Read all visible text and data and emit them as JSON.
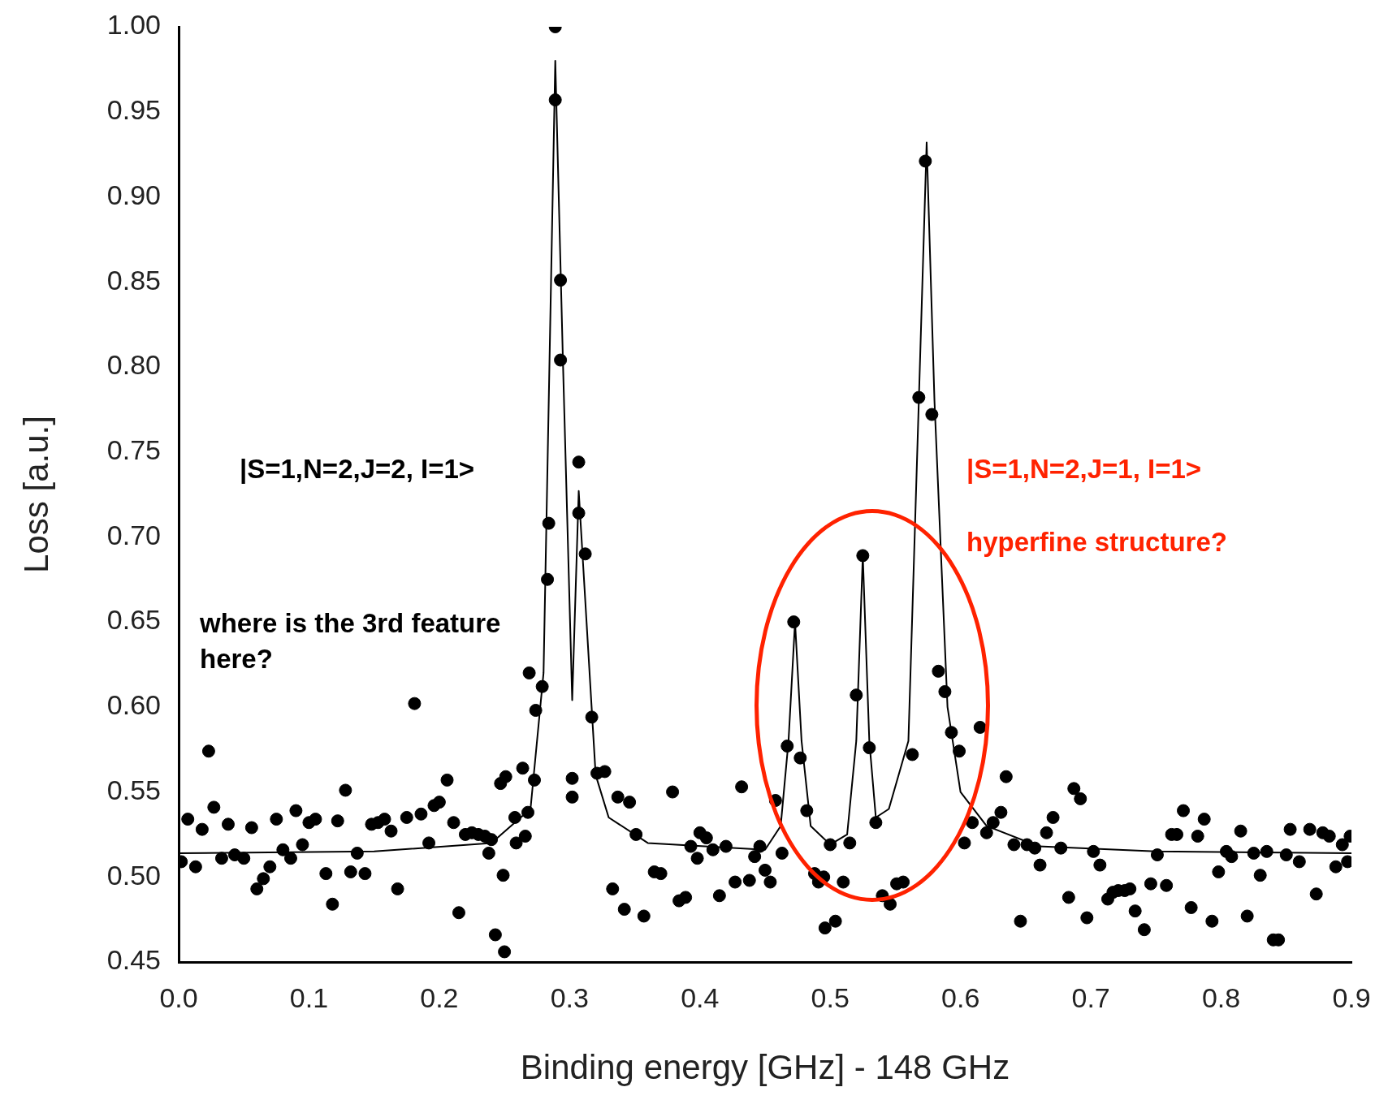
{
  "chart_data": {
    "type": "scatter",
    "xlabel": "Binding energy [GHz] - 148 GHz",
    "ylabel": "Loss [a.u.]",
    "annotations": [
      "|S=1,N=2,J=2, I=1>",
      "where is the 3rd feature here?",
      "|S=1,N=2,J=1, I=1>",
      "hyperfine structure?"
    ],
    "xlim": [
      0,
      0.9
    ],
    "ylim": [
      0.45,
      1.0
    ],
    "xticks": [
      {
        "value": 0,
        "label": "0.0"
      },
      {
        "value": 0.1,
        "label": "0.1"
      },
      {
        "value": 0.2,
        "label": "0.2"
      },
      {
        "value": 0.3,
        "label": "0.3"
      },
      {
        "value": 0.4,
        "label": "0.4"
      },
      {
        "value": 0.5,
        "label": "0.5"
      },
      {
        "value": 0.6,
        "label": "0.6"
      },
      {
        "value": 0.7,
        "label": "0.7"
      },
      {
        "value": 0.8,
        "label": "0.8"
      },
      {
        "value": 0.9,
        "label": "0.9"
      }
    ],
    "yticks": [
      {
        "value": 0.45,
        "label": "0.45"
      },
      {
        "value": 0.5,
        "label": "0.50"
      },
      {
        "value": 0.55,
        "label": "0.55"
      },
      {
        "value": 0.6,
        "label": "0.60"
      },
      {
        "value": 0.65,
        "label": "0.65"
      },
      {
        "value": 0.7,
        "label": "0.70"
      },
      {
        "value": 0.75,
        "label": "0.75"
      },
      {
        "value": 0.8,
        "label": "0.80"
      },
      {
        "value": 0.85,
        "label": "0.85"
      },
      {
        "value": 0.9,
        "label": "0.90"
      },
      {
        "value": 0.95,
        "label": "0.95"
      },
      {
        "value": 1.0,
        "label": "1.00"
      }
    ],
    "grid": false,
    "legend": false,
    "series": [
      {
        "color": "#000000",
        "marker": "circle",
        "x": [
          0.002,
          0.007,
          0.013,
          0.018,
          0.023,
          0.027,
          0.033,
          0.038,
          0.043,
          0.05,
          0.056,
          0.06,
          0.065,
          0.07,
          0.075,
          0.08,
          0.086,
          0.09,
          0.095,
          0.1,
          0.105,
          0.113,
          0.118,
          0.122,
          0.128,
          0.132,
          0.137,
          0.143,
          0.148,
          0.153,
          0.158,
          0.163,
          0.168,
          0.175,
          0.181,
          0.186,
          0.192,
          0.196,
          0.2,
          0.206,
          0.211,
          0.215,
          0.22,
          0.225,
          0.23,
          0.235,
          0.238,
          0.24,
          0.243,
          0.247,
          0.249,
          0.25,
          0.251,
          0.258,
          0.259,
          0.264,
          0.266,
          0.268,
          0.269,
          0.273,
          0.274,
          0.279,
          0.283,
          0.284,
          0.289,
          0.289,
          0.293,
          0.293,
          0.302,
          0.302,
          0.307,
          0.307,
          0.312,
          0.317,
          0.321,
          0.327,
          0.333,
          0.337,
          0.342,
          0.346,
          0.351,
          0.357,
          0.365,
          0.37,
          0.379,
          0.384,
          0.389,
          0.393,
          0.398,
          0.4,
          0.405,
          0.41,
          0.415,
          0.42,
          0.427,
          0.432,
          0.438,
          0.442,
          0.446,
          0.45,
          0.454,
          0.458,
          0.463,
          0.467,
          0.472,
          0.477,
          0.482,
          0.488,
          0.491,
          0.495,
          0.496,
          0.5,
          0.504,
          0.51,
          0.515,
          0.52,
          0.525,
          0.53,
          0.535,
          0.54,
          0.546,
          0.551,
          0.556,
          0.563,
          0.568,
          0.573,
          0.578,
          0.583,
          0.588,
          0.593,
          0.599,
          0.603,
          0.609,
          0.615,
          0.62,
          0.625,
          0.631,
          0.635,
          0.641,
          0.646,
          0.651,
          0.657,
          0.661,
          0.666,
          0.671,
          0.677,
          0.683,
          0.687,
          0.692,
          0.697,
          0.702,
          0.707,
          0.713,
          0.717,
          0.721,
          0.726,
          0.73,
          0.734,
          0.741,
          0.746,
          0.751,
          0.758,
          0.762,
          0.766,
          0.771,
          0.777,
          0.782,
          0.787,
          0.793,
          0.798,
          0.804,
          0.808,
          0.815,
          0.82,
          0.825,
          0.83,
          0.835,
          0.84,
          0.844,
          0.85,
          0.853,
          0.86,
          0.868,
          0.873,
          0.878,
          0.883,
          0.888,
          0.893,
          0.897,
          0.899
        ],
        "values": [
          0.509,
          0.534,
          0.506,
          0.528,
          0.574,
          0.541,
          0.511,
          0.531,
          0.513,
          0.511,
          0.529,
          0.493,
          0.499,
          0.506,
          0.534,
          0.516,
          0.511,
          0.539,
          0.519,
          0.532,
          0.534,
          0.502,
          0.484,
          0.533,
          0.551,
          0.503,
          0.514,
          0.502,
          0.531,
          0.532,
          0.534,
          0.527,
          0.493,
          0.535,
          0.602,
          0.537,
          0.52,
          0.542,
          0.544,
          0.557,
          0.532,
          0.479,
          0.525,
          0.526,
          0.525,
          0.524,
          0.514,
          0.522,
          0.466,
          0.555,
          0.501,
          0.456,
          0.559,
          0.535,
          0.52,
          0.564,
          0.524,
          0.538,
          0.62,
          0.557,
          0.598,
          0.612,
          0.675,
          0.708,
          0.957,
          1.0,
          0.851,
          0.804,
          0.558,
          0.547,
          0.744,
          0.714,
          0.69,
          0.594,
          0.561,
          0.562,
          0.493,
          0.547,
          0.481,
          0.544,
          0.525,
          0.477,
          0.503,
          0.502,
          0.55,
          0.486,
          0.488,
          0.518,
          0.511,
          0.526,
          0.523,
          0.516,
          0.489,
          0.518,
          0.497,
          0.553,
          0.498,
          0.512,
          0.518,
          0.504,
          0.497,
          0.545,
          0.514,
          0.577,
          0.65,
          0.57,
          0.539,
          0.502,
          0.497,
          0.5,
          0.47,
          0.519,
          0.474,
          0.497,
          0.52,
          0.607,
          0.689,
          0.576,
          0.532,
          0.489,
          0.484,
          0.496,
          0.497,
          0.572,
          0.782,
          0.921,
          0.772,
          0.621,
          0.609,
          0.585,
          0.574,
          0.52,
          0.532,
          0.588,
          0.526,
          0.532,
          0.538,
          0.559,
          0.519,
          0.474,
          0.519,
          0.517,
          0.507,
          0.526,
          0.535,
          0.517,
          0.488,
          0.552,
          0.546,
          0.476,
          0.515,
          0.507,
          0.487,
          0.491,
          0.492,
          0.492,
          0.493,
          0.48,
          0.469,
          0.496,
          0.513,
          0.495,
          0.525,
          0.525,
          0.539,
          0.482,
          0.524,
          0.534,
          0.474,
          0.503,
          0.515,
          0.512,
          0.527,
          0.477,
          0.514,
          0.501,
          0.515,
          0.463,
          0.463,
          0.513,
          0.528,
          0.509,
          0.528,
          0.49,
          0.526,
          0.524,
          0.506,
          0.519,
          0.509,
          0.524
        ]
      },
      {
        "type": "line",
        "color": "#000000",
        "marker": "none",
        "line_style": "solid",
        "x": [
          0,
          0.15,
          0.24,
          0.27,
          0.28,
          0.289,
          0.295,
          0.302,
          0.307,
          0.313,
          0.32,
          0.33,
          0.36,
          0.45,
          0.462,
          0.468,
          0.473,
          0.478,
          0.485,
          0.5,
          0.513,
          0.52,
          0.525,
          0.53,
          0.535,
          0.545,
          0.56,
          0.568,
          0.574,
          0.58,
          0.59,
          0.6,
          0.62,
          0.66,
          0.75,
          0.9
        ],
        "values": [
          0.514,
          0.515,
          0.52,
          0.54,
          0.62,
          0.98,
          0.8,
          0.604,
          0.727,
          0.65,
          0.56,
          0.535,
          0.52,
          0.516,
          0.53,
          0.58,
          0.65,
          0.58,
          0.53,
          0.519,
          0.525,
          0.58,
          0.689,
          0.58,
          0.535,
          0.54,
          0.58,
          0.78,
          0.932,
          0.78,
          0.6,
          0.55,
          0.53,
          0.518,
          0.515,
          0.514
        ]
      }
    ]
  }
}
